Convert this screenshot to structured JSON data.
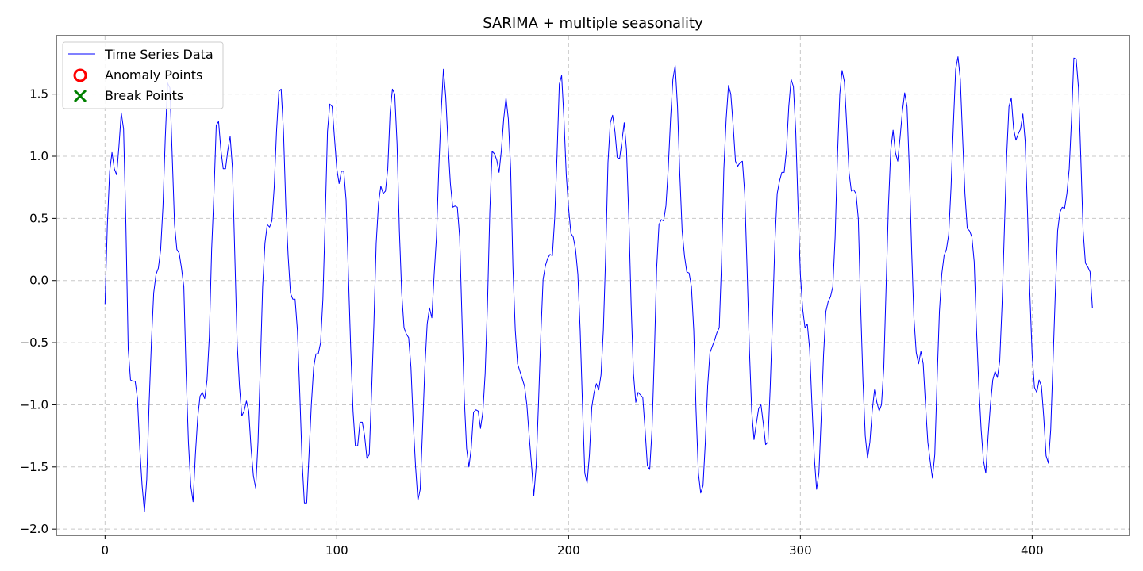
{
  "chart_data": {
    "type": "line",
    "title": "SARIMA + multiple seasonality",
    "xlabel": "",
    "ylabel": "",
    "xlim": [
      -21,
      442
    ],
    "ylim": [
      -2.05,
      1.97
    ],
    "x_ticks": [
      0,
      100,
      200,
      300,
      400
    ],
    "y_ticks": [
      -2.0,
      -1.5,
      -1.0,
      -0.5,
      0.0,
      0.5,
      1.0,
      1.5
    ],
    "x_tick_labels": [
      "0",
      "100",
      "200",
      "300",
      "400"
    ],
    "y_tick_labels": [
      "−2.0",
      "−1.5",
      "−1.0",
      "−0.5",
      "0.0",
      "0.5",
      "1.0",
      "1.5"
    ],
    "grid": true,
    "legend_position": "upper-left",
    "legend": [
      {
        "label": "Time Series Data",
        "marker": "line",
        "color": "#0000ff"
      },
      {
        "label": "Anomaly Points",
        "marker": "circle",
        "color": "#ff0000"
      },
      {
        "label": "Break Points",
        "marker": "x",
        "color": "#008000"
      }
    ],
    "series": [
      {
        "name": "Time Series Data",
        "color": "#0000ff",
        "x_start": 0,
        "x_step": 1,
        "values": [
          -0.19,
          0.45,
          0.88,
          1.03,
          0.9,
          0.85,
          1.08,
          1.35,
          1.22,
          0.45,
          -0.55,
          -0.8,
          -0.81,
          -0.81,
          -0.95,
          -1.35,
          -1.65,
          -1.86,
          -1.6,
          -1.0,
          -0.5,
          -0.1,
          0.05,
          0.1,
          0.25,
          0.6,
          1.15,
          1.59,
          1.55,
          1.0,
          0.45,
          0.25,
          0.22,
          0.1,
          -0.05,
          -0.75,
          -1.3,
          -1.65,
          -1.78,
          -1.4,
          -1.1,
          -0.93,
          -0.9,
          -0.95,
          -0.8,
          -0.45,
          0.25,
          0.7,
          1.25,
          1.28,
          1.05,
          0.9,
          0.9,
          1.05,
          1.16,
          0.9,
          0.2,
          -0.5,
          -0.85,
          -1.09,
          -1.05,
          -0.97,
          -1.05,
          -1.35,
          -1.57,
          -1.67,
          -1.3,
          -0.7,
          -0.05,
          0.3,
          0.45,
          0.43,
          0.48,
          0.75,
          1.2,
          1.52,
          1.54,
          1.2,
          0.6,
          0.2,
          -0.1,
          -0.15,
          -0.15,
          -0.4,
          -0.9,
          -1.45,
          -1.79,
          -1.79,
          -1.4,
          -1.0,
          -0.7,
          -0.59,
          -0.59,
          -0.5,
          -0.15,
          0.5,
          1.2,
          1.42,
          1.4,
          1.15,
          0.9,
          0.78,
          0.88,
          0.88,
          0.65,
          0.05,
          -0.55,
          -1.05,
          -1.33,
          -1.33,
          -1.14,
          -1.14,
          -1.25,
          -1.43,
          -1.4,
          -0.9,
          -0.35,
          0.3,
          0.62,
          0.76,
          0.7,
          0.72,
          0.9,
          1.35,
          1.54,
          1.5,
          1.1,
          0.4,
          -0.1,
          -0.38,
          -0.43,
          -0.46,
          -0.7,
          -1.15,
          -1.5,
          -1.77,
          -1.68,
          -1.2,
          -0.7,
          -0.35,
          -0.22,
          -0.3,
          0.05,
          0.35,
          0.9,
          1.35,
          1.7,
          1.48,
          1.1,
          0.78,
          0.59,
          0.6,
          0.59,
          0.35,
          -0.3,
          -0.95,
          -1.35,
          -1.5,
          -1.35,
          -1.06,
          -1.04,
          -1.05,
          -1.19,
          -1.06,
          -0.75,
          -0.2,
          0.55,
          1.04,
          1.02,
          0.97,
          0.87,
          1.05,
          1.3,
          1.47,
          1.3,
          0.9,
          0.1,
          -0.4,
          -0.67,
          -0.73,
          -0.79,
          -0.85,
          -1.0,
          -1.25,
          -1.48,
          -1.73,
          -1.5,
          -1.0,
          -0.45,
          0.01,
          0.12,
          0.18,
          0.21,
          0.2,
          0.5,
          1.0,
          1.58,
          1.65,
          1.3,
          0.85,
          0.58,
          0.38,
          0.35,
          0.25,
          0.05,
          -0.4,
          -1.0,
          -1.55,
          -1.63,
          -1.4,
          -1.02,
          -0.9,
          -0.83,
          -0.88,
          -0.76,
          -0.4,
          0.2,
          0.95,
          1.27,
          1.33,
          1.2,
          0.99,
          0.98,
          1.12,
          1.27,
          1.05,
          0.5,
          -0.2,
          -0.75,
          -0.98,
          -0.9,
          -0.92,
          -0.94,
          -1.2,
          -1.49,
          -1.52,
          -1.2,
          -0.6,
          0.1,
          0.45,
          0.49,
          0.48,
          0.6,
          0.9,
          1.3,
          1.62,
          1.73,
          1.4,
          0.85,
          0.4,
          0.2,
          0.07,
          0.06,
          -0.05,
          -0.4,
          -1.05,
          -1.55,
          -1.71,
          -1.65,
          -1.3,
          -0.85,
          -0.58,
          -0.53,
          -0.48,
          -0.42,
          -0.38,
          0.15,
          0.9,
          1.3,
          1.57,
          1.5,
          1.25,
          0.96,
          0.92,
          0.95,
          0.96,
          0.7,
          0.1,
          -0.55,
          -1.05,
          -1.28,
          -1.15,
          -1.03,
          -1.0,
          -1.15,
          -1.32,
          -1.3,
          -0.85,
          -0.3,
          0.3,
          0.7,
          0.8,
          0.87,
          0.87,
          1.05,
          1.4,
          1.62,
          1.56,
          1.2,
          0.6,
          0.05,
          -0.23,
          -0.38,
          -0.35,
          -0.55,
          -1.0,
          -1.42,
          -1.68,
          -1.55,
          -1.1,
          -0.6,
          -0.25,
          -0.17,
          -0.13,
          -0.05,
          0.35,
          1.0,
          1.5,
          1.69,
          1.6,
          1.25,
          0.87,
          0.72,
          0.73,
          0.7,
          0.5,
          -0.2,
          -0.8,
          -1.25,
          -1.43,
          -1.3,
          -1.05,
          -0.88,
          -0.98,
          -1.05,
          -1.0,
          -0.7,
          -0.05,
          0.6,
          1.05,
          1.21,
          1.03,
          0.96,
          1.15,
          1.36,
          1.51,
          1.4,
          0.9,
          0.25,
          -0.3,
          -0.58,
          -0.67,
          -0.57,
          -0.67,
          -1.0,
          -1.3,
          -1.45,
          -1.59,
          -1.4,
          -0.8,
          -0.25,
          0.05,
          0.2,
          0.25,
          0.37,
          0.75,
          1.25,
          1.7,
          1.8,
          1.62,
          1.15,
          0.7,
          0.42,
          0.4,
          0.35,
          0.15,
          -0.4,
          -0.85,
          -1.2,
          -1.45,
          -1.55,
          -1.25,
          -1.0,
          -0.8,
          -0.73,
          -0.78,
          -0.65,
          -0.2,
          0.4,
          1.0,
          1.4,
          1.47,
          1.22,
          1.13,
          1.18,
          1.22,
          1.34,
          1.12,
          0.55,
          -0.1,
          -0.6,
          -0.86,
          -0.9,
          -0.8,
          -0.85,
          -1.1,
          -1.41,
          -1.47,
          -1.2,
          -0.65,
          -0.1,
          0.4,
          0.55,
          0.59,
          0.58,
          0.7,
          0.9,
          1.3,
          1.79,
          1.78,
          1.55,
          0.99,
          0.4,
          0.14,
          0.11,
          0.07,
          -0.22
        ]
      }
    ]
  }
}
